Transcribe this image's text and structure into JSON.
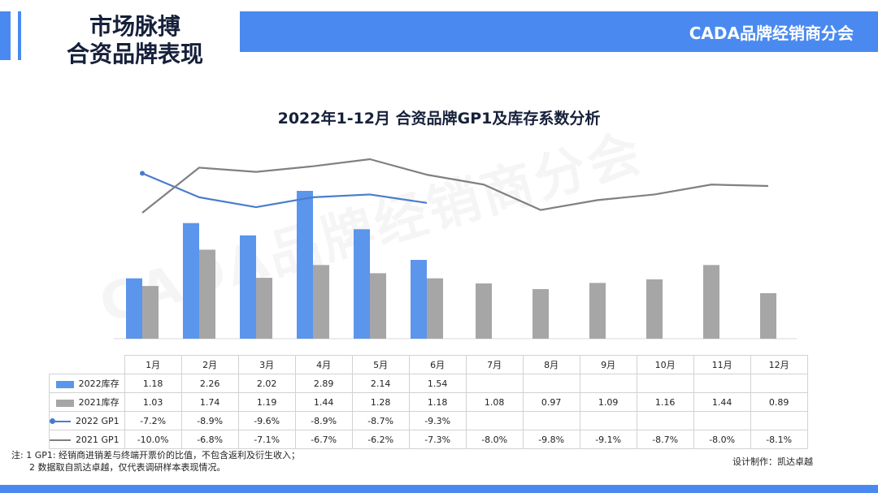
{
  "header": {
    "title_line1": "市场脉搏",
    "title_line2": "合资品牌表现",
    "org": "CADA品牌经销商分会"
  },
  "watermark": "CADA品牌经销商分会",
  "chart_data": {
    "type": "bar",
    "title": "2022年1-12月 合资品牌GP1及库存系数分析",
    "categories": [
      "1月",
      "2月",
      "3月",
      "4月",
      "5月",
      "6月",
      "7月",
      "8月",
      "9月",
      "10月",
      "11月",
      "12月"
    ],
    "series": [
      {
        "name": "2022库存",
        "kind": "bar",
        "color": "#5b95ec",
        "values": [
          1.18,
          2.26,
          2.02,
          2.89,
          2.14,
          1.54,
          null,
          null,
          null,
          null,
          null,
          null
        ],
        "labels": [
          "1.18",
          "2.26",
          "2.02",
          "2.89",
          "2.14",
          "1.54",
          "",
          "",
          "",
          "",
          "",
          ""
        ]
      },
      {
        "name": "2021库存",
        "kind": "bar",
        "color": "#a6a6a6",
        "values": [
          1.03,
          1.74,
          1.19,
          1.44,
          1.28,
          1.18,
          1.08,
          0.97,
          1.09,
          1.16,
          1.44,
          0.89
        ],
        "labels": [
          "1.03",
          "1.74",
          "1.19",
          "1.44",
          "1.28",
          "1.18",
          "1.08",
          "0.97",
          "1.09",
          "1.16",
          "1.44",
          "0.89"
        ]
      },
      {
        "name": "2022 GP1",
        "kind": "line",
        "color": "#4a7ccc",
        "values": [
          -7.2,
          -8.9,
          -9.6,
          -8.9,
          -8.7,
          -9.3,
          null,
          null,
          null,
          null,
          null,
          null
        ],
        "labels": [
          "-7.2%",
          "-8.9%",
          "-9.6%",
          "-8.9%",
          "-8.7%",
          "-9.3%",
          "",
          "",
          "",
          "",
          "",
          ""
        ]
      },
      {
        "name": "2021 GP1",
        "kind": "line",
        "color": "#808080",
        "values": [
          -10.0,
          -6.8,
          -7.1,
          -6.7,
          -6.2,
          -7.3,
          -8.0,
          -9.8,
          -9.1,
          -8.7,
          -8.0,
          -8.1
        ],
        "labels": [
          "-10.0%",
          "-6.8%",
          "-7.1%",
          "-6.7%",
          "-6.2%",
          "-7.3%",
          "-8.0%",
          "-9.8%",
          "-9.1%",
          "-8.7%",
          "-8.0%",
          "-8.1%"
        ]
      }
    ],
    "legend": "table-left"
  },
  "footnote": {
    "line1": "注: 1 GP1: 经销商进销差与终端开票价的比值，不包含返利及衍生收入；",
    "line2": "2 数据取自凯达卓越，仅代表调研样本表现情况。"
  },
  "credit": "设计制作：凯达卓越"
}
